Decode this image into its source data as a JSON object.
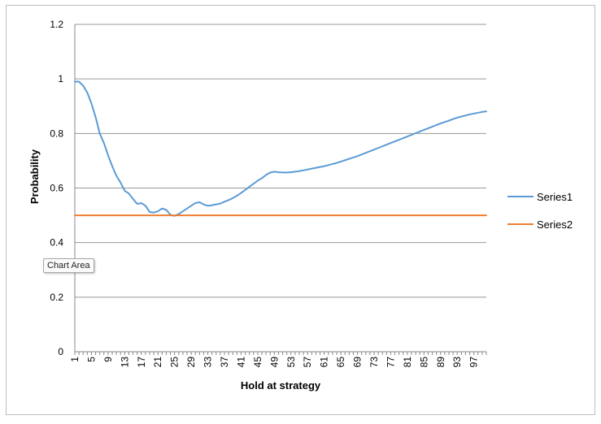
{
  "chart_data": {
    "type": "line",
    "title": "",
    "xlabel": "Hold at strategy",
    "ylabel": "Probability",
    "ylim": [
      0,
      1.2
    ],
    "y_ticks": [
      "0",
      "0.2",
      "0.4",
      "0.6",
      "0.8",
      "1",
      "1.2"
    ],
    "x_tick_labels": [
      "1",
      "5",
      "9",
      "13",
      "17",
      "21",
      "25",
      "29",
      "33",
      "37",
      "41",
      "45",
      "49",
      "53",
      "57",
      "61",
      "65",
      "69",
      "73",
      "77",
      "81",
      "85",
      "89",
      "93",
      "97"
    ],
    "grid": true,
    "legend_position": "right",
    "x": [
      1,
      2,
      3,
      4,
      5,
      6,
      7,
      8,
      9,
      10,
      11,
      12,
      13,
      14,
      15,
      16,
      17,
      18,
      19,
      20,
      21,
      22,
      23,
      24,
      25,
      26,
      27,
      28,
      29,
      30,
      31,
      32,
      33,
      34,
      35,
      36,
      37,
      38,
      39,
      40,
      41,
      42,
      43,
      44,
      45,
      46,
      47,
      48,
      49,
      50,
      51,
      52,
      53,
      54,
      55,
      56,
      57,
      58,
      59,
      60,
      61,
      62,
      63,
      64,
      65,
      66,
      67,
      68,
      69,
      70,
      71,
      72,
      73,
      74,
      75,
      76,
      77,
      78,
      79,
      80,
      81,
      82,
      83,
      84,
      85,
      86,
      87,
      88,
      89,
      90,
      91,
      92,
      93,
      94,
      95,
      96,
      97,
      98,
      99,
      100
    ],
    "series": [
      {
        "name": "Series1",
        "color": "#5b9bd5",
        "values": [
          0.99,
          0.99,
          0.975,
          0.95,
          0.91,
          0.86,
          0.8,
          0.765,
          0.72,
          0.68,
          0.645,
          0.62,
          0.59,
          0.58,
          0.56,
          0.542,
          0.545,
          0.535,
          0.512,
          0.51,
          0.515,
          0.525,
          0.52,
          0.502,
          0.498,
          0.505,
          0.515,
          0.525,
          0.535,
          0.545,
          0.548,
          0.54,
          0.535,
          0.537,
          0.54,
          0.543,
          0.55,
          0.556,
          0.563,
          0.572,
          0.582,
          0.593,
          0.605,
          0.616,
          0.627,
          0.636,
          0.648,
          0.657,
          0.66,
          0.658,
          0.657,
          0.657,
          0.658,
          0.66,
          0.662,
          0.665,
          0.668,
          0.671,
          0.674,
          0.677,
          0.68,
          0.684,
          0.688,
          0.692,
          0.697,
          0.702,
          0.707,
          0.712,
          0.717,
          0.723,
          0.729,
          0.735,
          0.741,
          0.747,
          0.753,
          0.759,
          0.765,
          0.771,
          0.777,
          0.783,
          0.789,
          0.795,
          0.801,
          0.807,
          0.813,
          0.819,
          0.825,
          0.831,
          0.837,
          0.842,
          0.847,
          0.853,
          0.858,
          0.862,
          0.866,
          0.87,
          0.873,
          0.876,
          0.879,
          0.881
        ]
      },
      {
        "name": "Series2",
        "color": "#ed7d31",
        "values": [
          0.5,
          0.5,
          0.5,
          0.5,
          0.5,
          0.5,
          0.5,
          0.5,
          0.5,
          0.5,
          0.5,
          0.5,
          0.5,
          0.5,
          0.5,
          0.5,
          0.5,
          0.5,
          0.5,
          0.5,
          0.5,
          0.5,
          0.5,
          0.5,
          0.5,
          0.5,
          0.5,
          0.5,
          0.5,
          0.5,
          0.5,
          0.5,
          0.5,
          0.5,
          0.5,
          0.5,
          0.5,
          0.5,
          0.5,
          0.5,
          0.5,
          0.5,
          0.5,
          0.5,
          0.5,
          0.5,
          0.5,
          0.5,
          0.5,
          0.5,
          0.5,
          0.5,
          0.5,
          0.5,
          0.5,
          0.5,
          0.5,
          0.5,
          0.5,
          0.5,
          0.5,
          0.5,
          0.5,
          0.5,
          0.5,
          0.5,
          0.5,
          0.5,
          0.5,
          0.5,
          0.5,
          0.5,
          0.5,
          0.5,
          0.5,
          0.5,
          0.5,
          0.5,
          0.5,
          0.5,
          0.5,
          0.5,
          0.5,
          0.5,
          0.5,
          0.5,
          0.5,
          0.5,
          0.5,
          0.5,
          0.5,
          0.5,
          0.5,
          0.5,
          0.5,
          0.5,
          0.5,
          0.5,
          0.5,
          0.5
        ]
      }
    ]
  },
  "tooltip": {
    "text": "Chart Area"
  },
  "colors": {
    "gridline": "#999999",
    "axis": "#888888"
  }
}
